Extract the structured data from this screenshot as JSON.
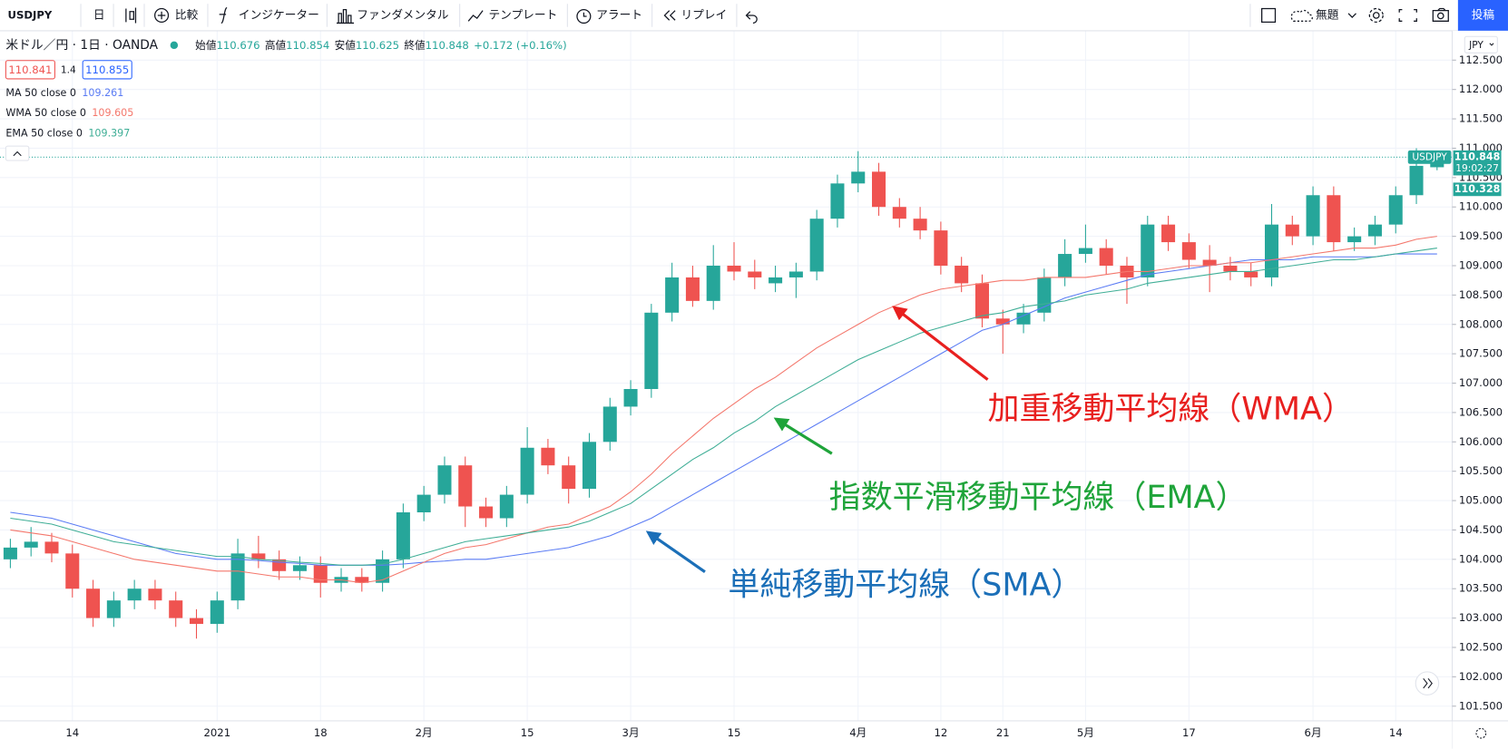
{
  "toolbar": {
    "symbol": "USDJPY",
    "interval": "日",
    "items": [
      "比較",
      "インジケーター",
      "ファンダメンタル",
      "テンプレート",
      "アラート",
      "リプレイ"
    ],
    "layout": "無題",
    "publish": "投稿"
  },
  "header": {
    "title": "米ドル／円 · 1日 · OANDA",
    "ohlc": [
      [
        "始値",
        "110.676"
      ],
      [
        "高値",
        "110.854"
      ],
      [
        "安値",
        "110.625"
      ],
      [
        "終値",
        "110.848"
      ]
    ],
    "change": "+0.172 (+0.16%)",
    "bid": "110.841",
    "spread": "1.4",
    "ask": "110.855",
    "currency": "JPY"
  },
  "chart_data": {
    "type": "candlestick",
    "name": "USDJPY",
    "up_color": "#26a69a",
    "down_color": "#ef5350",
    "grid": true,
    "categories": [
      null,
      null,
      null,
      "14",
      null,
      null,
      null,
      null,
      null,
      null,
      "2021",
      null,
      null,
      null,
      null,
      "18",
      null,
      null,
      null,
      null,
      "2月",
      null,
      null,
      null,
      null,
      "15",
      null,
      null,
      null,
      null,
      "3月",
      null,
      null,
      null,
      null,
      "15",
      null,
      null,
      null,
      null,
      null,
      "4月",
      null,
      null,
      null,
      "12",
      null,
      null,
      "21",
      null,
      null,
      null,
      "5月",
      null,
      null,
      null,
      null,
      "17",
      null,
      null,
      null,
      null,
      null,
      "6月",
      null,
      null,
      null,
      "14",
      null,
      null
    ],
    "ohlc": [
      [
        104.0,
        104.35,
        103.85,
        104.2
      ],
      [
        104.2,
        104.55,
        104.05,
        104.3
      ],
      [
        104.3,
        104.45,
        103.95,
        104.1
      ],
      [
        104.1,
        104.25,
        103.35,
        103.5
      ],
      [
        103.5,
        103.65,
        102.85,
        103.0
      ],
      [
        103.0,
        103.45,
        102.85,
        103.3
      ],
      [
        103.3,
        103.65,
        103.15,
        103.5
      ],
      [
        103.5,
        103.65,
        103.15,
        103.3
      ],
      [
        103.3,
        103.45,
        102.85,
        103.0
      ],
      [
        103.0,
        103.15,
        102.65,
        102.9
      ],
      [
        102.9,
        103.45,
        102.75,
        103.3
      ],
      [
        103.3,
        104.35,
        103.15,
        104.1
      ],
      [
        104.1,
        104.4,
        103.85,
        104.0
      ],
      [
        104.0,
        104.15,
        103.65,
        103.8
      ],
      [
        103.8,
        104.05,
        103.65,
        103.9
      ],
      [
        103.9,
        104.05,
        103.35,
        103.6
      ],
      [
        103.6,
        103.85,
        103.45,
        103.7
      ],
      [
        103.7,
        103.85,
        103.45,
        103.6
      ],
      [
        103.6,
        104.15,
        103.45,
        104.0
      ],
      [
        104.0,
        104.95,
        103.85,
        104.8
      ],
      [
        104.8,
        105.25,
        104.65,
        105.1
      ],
      [
        105.1,
        105.75,
        104.95,
        105.6
      ],
      [
        105.6,
        105.75,
        104.55,
        104.9
      ],
      [
        104.9,
        105.05,
        104.55,
        104.7
      ],
      [
        104.7,
        105.25,
        104.55,
        105.1
      ],
      [
        105.1,
        106.25,
        104.95,
        105.9
      ],
      [
        105.9,
        106.05,
        105.45,
        105.6
      ],
      [
        105.6,
        105.75,
        104.95,
        105.2
      ],
      [
        105.2,
        106.15,
        105.05,
        106.0
      ],
      [
        106.0,
        106.75,
        105.85,
        106.6
      ],
      [
        106.6,
        107.05,
        106.45,
        106.9
      ],
      [
        106.9,
        108.35,
        106.75,
        108.2
      ],
      [
        108.2,
        109.05,
        108.05,
        108.8
      ],
      [
        108.8,
        109.0,
        108.3,
        108.4
      ],
      [
        108.4,
        109.35,
        108.25,
        109.0
      ],
      [
        109.0,
        109.4,
        108.75,
        108.9
      ],
      [
        108.9,
        109.1,
        108.6,
        108.8
      ],
      [
        108.7,
        109.0,
        108.55,
        108.8
      ],
      [
        108.8,
        109.05,
        108.45,
        108.9
      ],
      [
        108.9,
        109.95,
        108.75,
        109.8
      ],
      [
        109.8,
        110.55,
        109.65,
        110.4
      ],
      [
        110.4,
        110.95,
        110.25,
        110.6
      ],
      [
        110.6,
        110.75,
        109.85,
        110.0
      ],
      [
        110.0,
        110.15,
        109.65,
        109.8
      ],
      [
        109.8,
        110.0,
        109.45,
        109.6
      ],
      [
        109.6,
        109.75,
        108.85,
        109.0
      ],
      [
        109.0,
        109.15,
        108.55,
        108.7
      ],
      [
        108.7,
        108.85,
        107.95,
        108.1
      ],
      [
        108.1,
        108.25,
        107.5,
        108.0
      ],
      [
        108.0,
        108.35,
        107.85,
        108.2
      ],
      [
        108.2,
        108.95,
        108.05,
        108.8
      ],
      [
        108.8,
        109.45,
        108.65,
        109.2
      ],
      [
        109.2,
        109.7,
        109.05,
        109.3
      ],
      [
        109.3,
        109.45,
        108.85,
        109.0
      ],
      [
        109.0,
        109.15,
        108.35,
        108.8
      ],
      [
        108.8,
        109.85,
        108.65,
        109.7
      ],
      [
        109.7,
        109.85,
        109.25,
        109.4
      ],
      [
        109.4,
        109.55,
        108.95,
        109.1
      ],
      [
        109.1,
        109.35,
        108.55,
        109.0
      ],
      [
        109.0,
        109.15,
        108.75,
        108.9
      ],
      [
        108.9,
        109.05,
        108.65,
        108.8
      ],
      [
        108.8,
        110.05,
        108.65,
        109.7
      ],
      [
        109.7,
        109.85,
        109.35,
        109.5
      ],
      [
        109.5,
        110.35,
        109.35,
        110.2
      ],
      [
        110.2,
        110.35,
        109.25,
        109.4
      ],
      [
        109.4,
        109.65,
        109.25,
        109.5
      ],
      [
        109.5,
        109.85,
        109.35,
        109.7
      ],
      [
        109.7,
        110.35,
        109.55,
        110.2
      ],
      [
        110.2,
        111.0,
        110.05,
        110.7
      ],
      [
        110.676,
        110.854,
        110.625,
        110.848
      ]
    ],
    "series": [
      {
        "name": "MA 50 close 0",
        "value_label": "109.261",
        "color": "#5b7cf4",
        "values": [
          104.8,
          104.75,
          104.7,
          104.6,
          104.5,
          104.4,
          104.3,
          104.2,
          104.1,
          104.05,
          104.0,
          104.0,
          103.98,
          103.95,
          103.93,
          103.9,
          103.9,
          103.9,
          103.9,
          103.92,
          103.95,
          103.97,
          104.0,
          104.0,
          104.05,
          104.1,
          104.15,
          104.2,
          104.3,
          104.4,
          104.55,
          104.7,
          104.9,
          105.1,
          105.3,
          105.5,
          105.7,
          105.9,
          106.1,
          106.3,
          106.5,
          106.7,
          106.9,
          107.1,
          107.3,
          107.5,
          107.7,
          107.9,
          108.0,
          108.15,
          108.3,
          108.45,
          108.55,
          108.65,
          108.75,
          108.85,
          108.9,
          108.95,
          109.0,
          109.05,
          109.1,
          109.1,
          109.1,
          109.15,
          109.15,
          109.15,
          109.15,
          109.2,
          109.2,
          109.2
        ]
      },
      {
        "name": "WMA 50 close 0",
        "value_label": "109.605",
        "color": "#f4776c",
        "values": [
          104.5,
          104.45,
          104.4,
          104.3,
          104.2,
          104.1,
          104.0,
          103.95,
          103.9,
          103.85,
          103.8,
          103.8,
          103.75,
          103.7,
          103.7,
          103.65,
          103.65,
          103.6,
          103.65,
          103.8,
          103.95,
          104.1,
          104.2,
          104.25,
          104.35,
          104.45,
          104.55,
          104.6,
          104.75,
          104.9,
          105.15,
          105.45,
          105.8,
          106.1,
          106.4,
          106.65,
          106.9,
          107.1,
          107.35,
          107.6,
          107.8,
          108.0,
          108.2,
          108.35,
          108.5,
          108.6,
          108.65,
          108.7,
          108.75,
          108.75,
          108.8,
          108.8,
          108.8,
          108.85,
          108.9,
          108.9,
          108.95,
          109.0,
          109.0,
          109.05,
          109.05,
          109.1,
          109.15,
          109.2,
          109.25,
          109.3,
          109.3,
          109.35,
          109.45,
          109.5
        ]
      },
      {
        "name": "EMA 50 close 0",
        "value_label": "109.397",
        "color": "#3fae96",
        "values": [
          104.7,
          104.65,
          104.6,
          104.5,
          104.4,
          104.3,
          104.25,
          104.2,
          104.15,
          104.1,
          104.05,
          104.05,
          104.0,
          103.98,
          103.95,
          103.93,
          103.9,
          103.9,
          103.92,
          104.0,
          104.1,
          104.2,
          104.3,
          104.35,
          104.4,
          104.45,
          104.5,
          104.55,
          104.65,
          104.8,
          104.95,
          105.2,
          105.45,
          105.7,
          105.9,
          106.15,
          106.35,
          106.6,
          106.8,
          107.0,
          107.2,
          107.4,
          107.55,
          107.7,
          107.85,
          107.95,
          108.05,
          108.15,
          108.2,
          108.3,
          108.35,
          108.4,
          108.5,
          108.55,
          108.6,
          108.7,
          108.75,
          108.8,
          108.85,
          108.9,
          108.9,
          108.95,
          109.0,
          109.05,
          109.1,
          109.1,
          109.15,
          109.2,
          109.25,
          109.3
        ]
      }
    ],
    "ylim": [
      101.25,
      113.0
    ],
    "yticks": [
      {
        "value": 101.5,
        "label": "101.500"
      },
      {
        "value": 102.0,
        "label": "102.000"
      },
      {
        "value": 102.5,
        "label": "102.500"
      },
      {
        "value": 103.0,
        "label": "103.000"
      },
      {
        "value": 103.5,
        "label": "103.500"
      },
      {
        "value": 104.0,
        "label": "104.000"
      },
      {
        "value": 104.5,
        "label": "104.500"
      },
      {
        "value": 105.0,
        "label": "105.000"
      },
      {
        "value": 105.5,
        "label": "105.500"
      },
      {
        "value": 106.0,
        "label": "106.000"
      },
      {
        "value": 106.5,
        "label": "106.500"
      },
      {
        "value": 107.0,
        "label": "107.000"
      },
      {
        "value": 107.5,
        "label": "107.500"
      },
      {
        "value": 108.0,
        "label": "108.000"
      },
      {
        "value": 108.5,
        "label": "108.500"
      },
      {
        "value": 109.0,
        "label": "109.000"
      },
      {
        "value": 109.5,
        "label": "109.500"
      },
      {
        "value": 110.0,
        "label": "110.000"
      },
      {
        "value": 110.5,
        "label": "110.500"
      },
      {
        "value": 111.0,
        "label": "111.000"
      },
      {
        "value": 111.5,
        "label": "111.500"
      },
      {
        "value": 112.0,
        "label": "112.000"
      },
      {
        "value": 112.5,
        "label": "112.500"
      }
    ],
    "price_tags": {
      "symbol": "USDJPY",
      "price": "110.848",
      "countdown": "19:02:27",
      "other": "110.328"
    },
    "annotations": [
      {
        "text": "加重移動平均線（WMA）",
        "color": "#e8201f"
      },
      {
        "text": "指数平滑移動平均線（EMA）",
        "color": "#1fa43a"
      },
      {
        "text": "単純移動平均線（SMA）",
        "color": "#1b6fb8"
      }
    ]
  }
}
